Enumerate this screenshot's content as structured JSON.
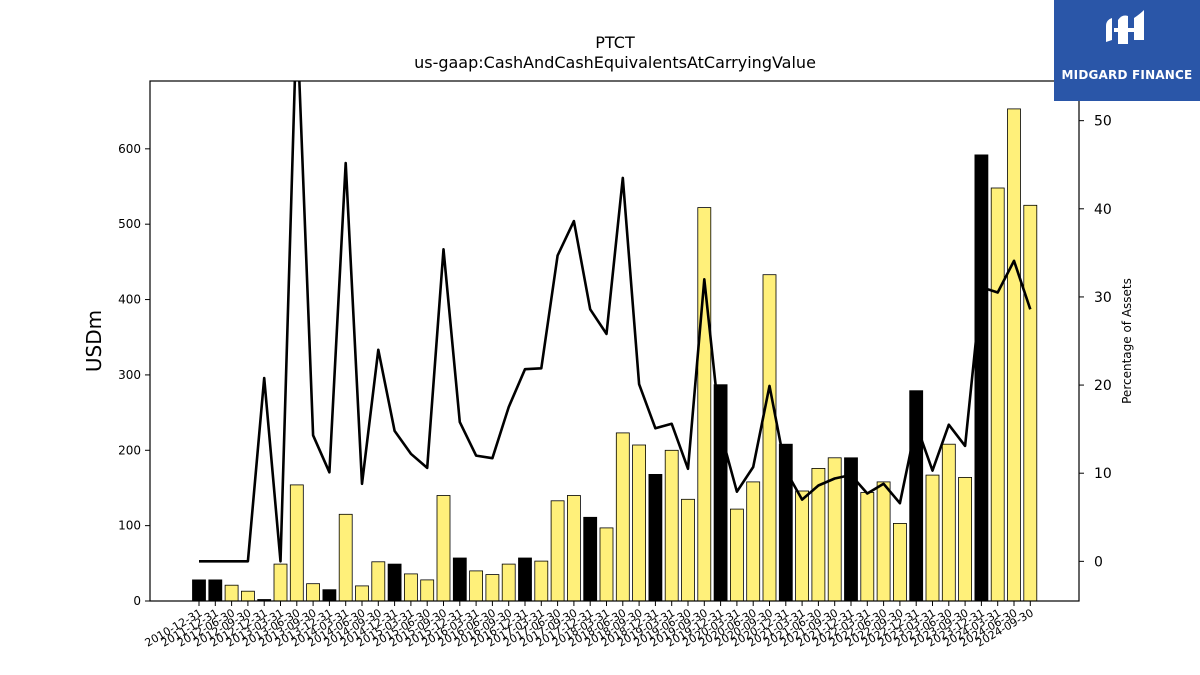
{
  "chart_data": {
    "type": "bar",
    "title": "PTCT",
    "subtitle": "us-gaap:CashAndCashEquivalentsAtCarryingValue",
    "ylabel": "USDm",
    "y2label": "Percentage of Assets",
    "ylim": [
      0,
      690
    ],
    "y2lim": [
      -4.5,
      54.5
    ],
    "yticks": [
      0,
      100,
      200,
      300,
      400,
      500,
      600
    ],
    "y2ticks": [
      0,
      10,
      20,
      30,
      40,
      50
    ],
    "grid": false,
    "bar_colors": {
      "q4": "#000000",
      "other": "#fff07a"
    },
    "line_color": "#000000",
    "categories": [
      "2010-12-31",
      "2011-12-31",
      "2012-06-30",
      "2012-09-30",
      "2012-12-31",
      "2013-03-31",
      "2013-06-30",
      "2013-09-30",
      "2013-12-31",
      "2014-03-31",
      "2014-06-30",
      "2014-09-30",
      "2014-12-31",
      "2015-03-31",
      "2015-06-30",
      "2015-09-30",
      "2015-12-31",
      "2016-03-31",
      "2016-06-30",
      "2016-09-30",
      "2016-12-31",
      "2017-03-31",
      "2017-06-30",
      "2017-09-30",
      "2017-12-31",
      "2018-03-31",
      "2018-06-30",
      "2018-09-30",
      "2018-12-31",
      "2019-03-31",
      "2019-06-30",
      "2019-09-30",
      "2019-12-31",
      "2020-03-31",
      "2020-06-30",
      "2020-09-30",
      "2020-12-31",
      "2021-03-31",
      "2021-06-30",
      "2021-09-30",
      "2021-12-31",
      "2022-03-31",
      "2022-06-30",
      "2022-09-30",
      "2022-12-31",
      "2023-03-31",
      "2023-06-30",
      "2023-09-30",
      "2023-12-31",
      "2024-03-31",
      "2024-06-30",
      "2024-09-30"
    ],
    "series": [
      {
        "kind": "bar",
        "values": [
          28,
          28,
          21,
          13,
          2,
          49,
          154,
          23,
          15,
          115,
          20,
          52,
          49,
          36,
          28,
          140,
          57,
          40,
          35,
          49,
          57,
          53,
          133,
          140,
          111,
          97,
          223,
          207,
          168,
          200,
          135,
          522,
          287,
          122,
          158,
          433,
          208,
          146,
          176,
          190,
          190,
          144,
          158,
          103,
          279,
          167,
          208,
          164,
          592,
          548,
          653,
          525
        ]
      },
      {
        "kind": "line",
        "axis": "right",
        "values": [
          0,
          0,
          0,
          0,
          20.8,
          0,
          62,
          14.3,
          10.1,
          45.2,
          8.8,
          24,
          14.8,
          12.2,
          10.6,
          35.4,
          15.8,
          12,
          11.7,
          17.5,
          21.8,
          21.9,
          34.7,
          38.6,
          28.6,
          25.8,
          43.5,
          20.1,
          15.1,
          15.6,
          10.5,
          32,
          14.7,
          7.9,
          10.7,
          19.9,
          10.3,
          7,
          8.6,
          9.4,
          9.8,
          7.7,
          8.8,
          6.6,
          15.5,
          10.3,
          15.5,
          13.1,
          31.1,
          30.5,
          34.1,
          28.6
        ]
      }
    ]
  },
  "logo": {
    "text": "MIDGARD FINANCE"
  }
}
